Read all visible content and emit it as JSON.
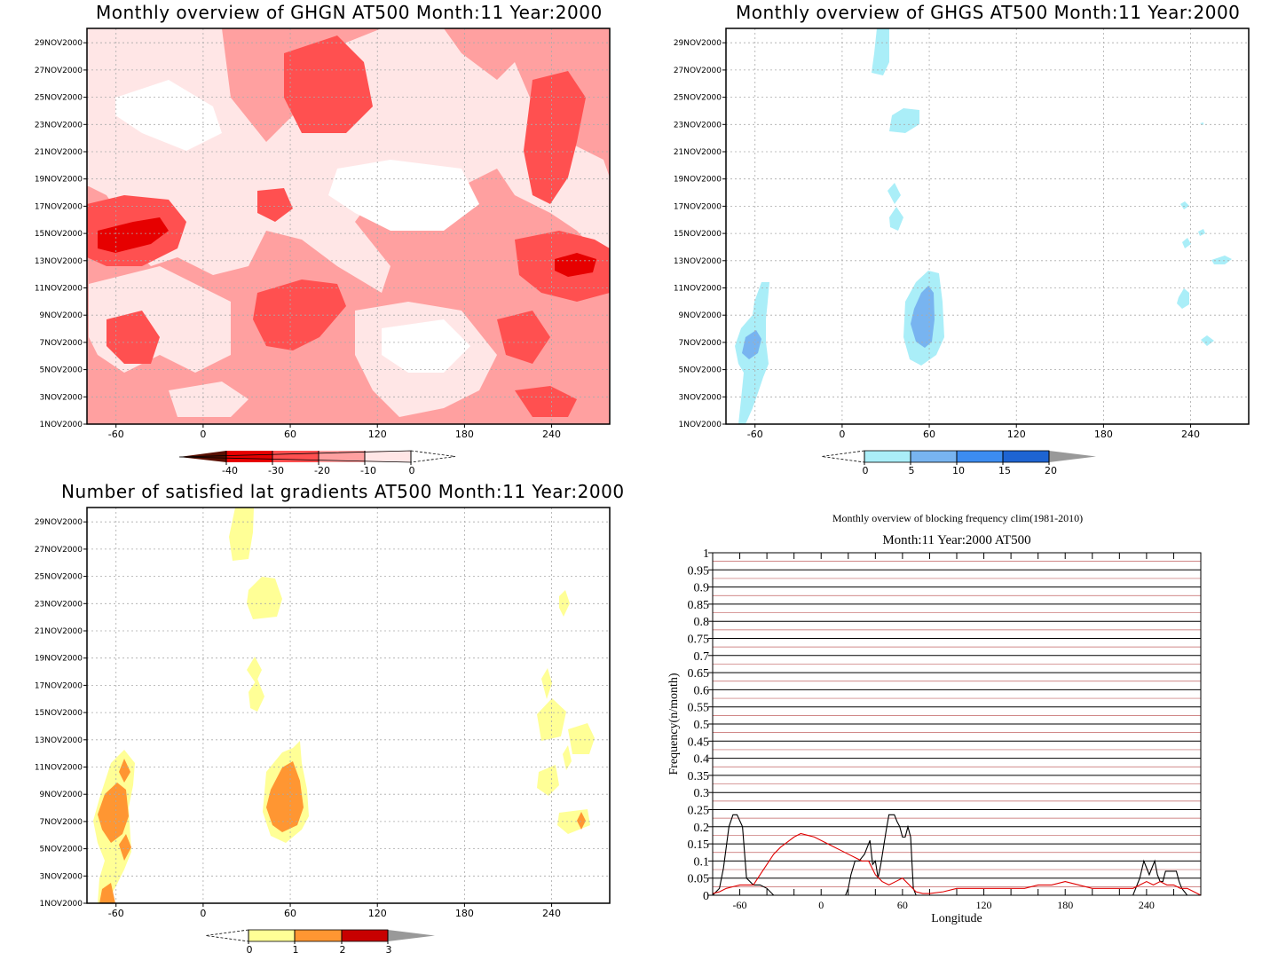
{
  "dates": [
    "1NOV2000",
    "3NOV2000",
    "5NOV2000",
    "7NOV2000",
    "9NOV2000",
    "11NOV2000",
    "13NOV2000",
    "15NOV2000",
    "17NOV2000",
    "19NOV2000",
    "21NOV2000",
    "23NOV2000",
    "25NOV2000",
    "27NOV2000",
    "29NOV2000"
  ],
  "lon_ticks": [
    "-60",
    "0",
    "60",
    "120",
    "180",
    "240"
  ],
  "chart_data": [
    {
      "type": "heatmap",
      "title": "Monthly overview of GHGN AT500 Month:11 Year:2000",
      "x_ticks": [
        -60,
        0,
        60,
        120,
        180,
        240
      ],
      "colorbar": {
        "labels": [
          "-40",
          "-30",
          "-20",
          "-10",
          "0"
        ],
        "colors": [
          "#5a0f00",
          "#e60000",
          "#ff5050",
          "#ffa0a0",
          "#ffe6e6"
        ]
      }
    },
    {
      "type": "heatmap",
      "title": "Monthly overview of GHGS AT500 Month:11 Year:2000",
      "x_ticks": [
        -60,
        0,
        60,
        120,
        180,
        240
      ],
      "colorbar": {
        "labels": [
          "0",
          "5",
          "10",
          "15",
          "20"
        ],
        "colors": [
          "#aaeef8",
          "#78b4f0",
          "#3c8cf0",
          "#1e64d2"
        ]
      }
    },
    {
      "type": "heatmap",
      "title": "Number of satisfied lat gradients AT500 Month:11 Year:2000",
      "x_ticks": [
        -60,
        0,
        60,
        120,
        180,
        240
      ],
      "colorbar": {
        "labels": [
          "0",
          "1",
          "2",
          "3"
        ],
        "colors": [
          "#ffff96",
          "#ff9632",
          "#c80000"
        ]
      }
    },
    {
      "type": "line",
      "title": "Monthly overview of blocking frequency clim(1981-2010)",
      "subtitle": "Month:11 Year:2000  AT500",
      "xlabel": "Longitude",
      "ylabel": "Frequency(n/month)",
      "x_ticks": [
        "-60",
        "0",
        "60",
        "120",
        "180",
        "240"
      ],
      "y_ticks": [
        "0",
        "0.05",
        "0.1",
        "0.15",
        "0.2",
        "0.25",
        "0.3",
        "0.35",
        "0.4",
        "0.45",
        "0.5",
        "0.55",
        "0.6",
        "0.65",
        "0.7",
        "0.75",
        "0.8",
        "0.85",
        "0.9",
        "0.95",
        "1"
      ],
      "xlim": [
        -80,
        280
      ],
      "ylim": [
        0,
        1
      ],
      "series": [
        {
          "color": "#000000",
          "x": [
            -80,
            -75,
            -72,
            -68,
            -65,
            -62,
            -58,
            -55,
            -50,
            -45,
            -40,
            -35,
            -30,
            -25,
            -20,
            -15,
            -10,
            -5,
            0,
            5,
            10,
            15,
            18,
            20,
            22,
            25,
            28,
            30,
            32,
            34,
            36,
            38,
            40,
            42,
            44,
            46,
            48,
            50,
            52,
            54,
            56,
            58,
            60,
            62,
            64,
            66,
            68,
            70,
            75,
            80,
            90,
            100,
            120,
            140,
            160,
            180,
            200,
            220,
            230,
            235,
            238,
            240,
            242,
            244,
            246,
            248,
            250,
            252,
            254,
            256,
            258,
            260,
            262,
            264,
            266,
            268,
            270,
            272,
            275,
            280
          ],
          "y": [
            0,
            0.02,
            0.08,
            0.2,
            0.235,
            0.235,
            0.2,
            0.05,
            0.03,
            0.03,
            0.02,
            0,
            0,
            0,
            0,
            0,
            0,
            0,
            0,
            0,
            0,
            0,
            0,
            0.02,
            0.06,
            0.1,
            0.1,
            0.11,
            0.12,
            0.14,
            0.16,
            0.09,
            0.1,
            0.05,
            0.09,
            0.14,
            0.19,
            0.235,
            0.235,
            0.235,
            0.215,
            0.2,
            0.17,
            0.17,
            0.2,
            0.17,
            0.02,
            0,
            0,
            0,
            0,
            0,
            0,
            0,
            0,
            0,
            0,
            0,
            0,
            0.05,
            0.1,
            0.08,
            0.06,
            0.08,
            0.1,
            0.06,
            0.04,
            0.04,
            0.07,
            0.07,
            0.07,
            0.07,
            0.07,
            0.04,
            0.02,
            0.01,
            0,
            0,
            0,
            0
          ]
        },
        {
          "color": "#e00000",
          "x": [
            -80,
            -75,
            -70,
            -65,
            -60,
            -55,
            -50,
            -45,
            -40,
            -35,
            -30,
            -25,
            -20,
            -15,
            -10,
            -5,
            0,
            5,
            10,
            15,
            20,
            25,
            30,
            35,
            40,
            45,
            50,
            55,
            60,
            65,
            70,
            75,
            80,
            90,
            100,
            110,
            120,
            130,
            140,
            150,
            160,
            170,
            180,
            190,
            200,
            210,
            220,
            230,
            240,
            245,
            250,
            255,
            260,
            265,
            270,
            275,
            280
          ],
          "y": [
            0.005,
            0.01,
            0.02,
            0.025,
            0.03,
            0.03,
            0.03,
            0.06,
            0.09,
            0.12,
            0.14,
            0.155,
            0.17,
            0.18,
            0.175,
            0.17,
            0.16,
            0.15,
            0.14,
            0.13,
            0.12,
            0.11,
            0.1,
            0.1,
            0.06,
            0.04,
            0.03,
            0.04,
            0.05,
            0.03,
            0.01,
            0.005,
            0.005,
            0.01,
            0.02,
            0.02,
            0.02,
            0.02,
            0.02,
            0.02,
            0.03,
            0.03,
            0.04,
            0.03,
            0.02,
            0.02,
            0.02,
            0.02,
            0.04,
            0.03,
            0.04,
            0.03,
            0.03,
            0.02,
            0.02,
            0.01,
            0
          ]
        }
      ]
    }
  ]
}
